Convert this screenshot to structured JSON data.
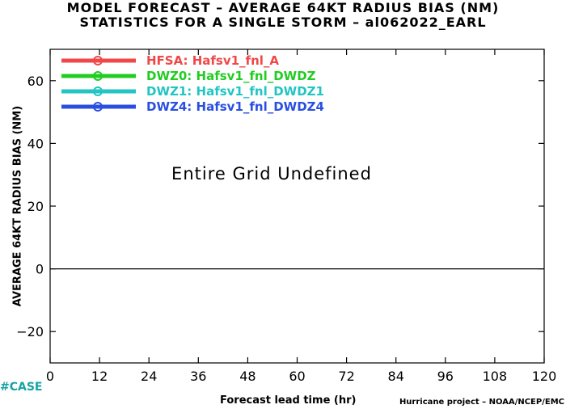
{
  "header": {
    "title_line1": "MODEL FORECAST – AVERAGE 64KT RADIUS BIAS (NM)",
    "title_line2": "STATISTICS FOR A SINGLE STORM – al062022_EARL"
  },
  "footer": {
    "case_label": "#CASE",
    "credit": "Hurricane project – NOAA/NCEP/EMC"
  },
  "chart_data": {
    "type": "line",
    "xlabel": "Forecast lead time (hr)",
    "ylabel": "AVERAGE 64KT RADIUS BIAS (NM)",
    "xlim": [
      0,
      120
    ],
    "ylim": [
      -30,
      70
    ],
    "xticks": [
      0,
      12,
      24,
      36,
      48,
      60,
      72,
      84,
      96,
      108,
      120
    ],
    "yticks": [
      -20,
      0,
      20,
      40,
      60
    ],
    "xtick_labels": [
      "0",
      "12",
      "24",
      "36",
      "48",
      "60",
      "72",
      "84",
      "96",
      "108",
      "120"
    ],
    "ytick_labels": [
      "−20",
      "0",
      "20",
      "40",
      "60"
    ],
    "zero_line": 0,
    "annotation": "Entire Grid Undefined",
    "legend_position": "top-left",
    "series": [
      {
        "name": "HFSA: Hafsv1_fnl_A",
        "color": "#f04848",
        "values": []
      },
      {
        "name": "DWZ0: Hafsv1_fnl_DWDZ",
        "color": "#22cc22",
        "values": []
      },
      {
        "name": "DWZ1: Hafsv1_fnl_DWDZ1",
        "color": "#22c4c4",
        "values": []
      },
      {
        "name": "DWZ4: Hafsv1_fnl_DWDZ4",
        "color": "#2a4fe0",
        "values": []
      }
    ]
  }
}
